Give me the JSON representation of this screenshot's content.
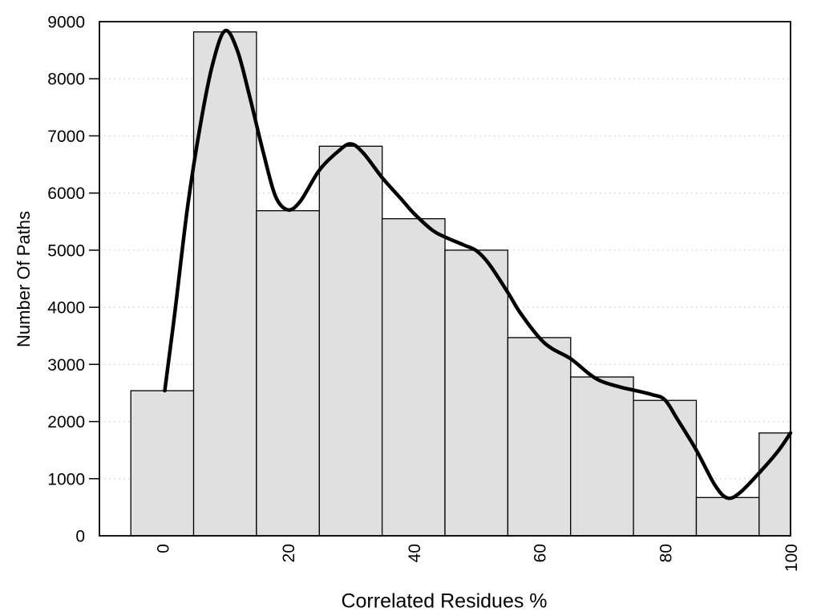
{
  "chart_data": {
    "type": "bar",
    "subtype": "histogram-with-smoothed-curve",
    "title": "",
    "xlabel": "Correlated Residues %",
    "ylabel": "Number Of Paths",
    "xlim": [
      -10,
      100
    ],
    "ylim": [
      0,
      9000
    ],
    "x_tick_labels": [
      0,
      20,
      40,
      60,
      80,
      100
    ],
    "y_tick_labels": [
      0,
      1000,
      2000,
      3000,
      4000,
      5000,
      6000,
      7000,
      8000,
      9000
    ],
    "x_tick_rotation": -90,
    "grid": {
      "horizontal_dotted_at": [
        1000,
        2000,
        3000,
        4000,
        5000,
        6000,
        7000,
        8000
      ]
    },
    "legend": "none",
    "bars": [
      {
        "x0": -5,
        "x1": 5,
        "value": 2540
      },
      {
        "x0": 5,
        "x1": 15,
        "value": 8820
      },
      {
        "x0": 15,
        "x1": 25,
        "value": 5690
      },
      {
        "x0": 25,
        "x1": 35,
        "value": 6820
      },
      {
        "x0": 35,
        "x1": 45,
        "value": 5550
      },
      {
        "x0": 45,
        "x1": 55,
        "value": 5000
      },
      {
        "x0": 55,
        "x1": 65,
        "value": 3470
      },
      {
        "x0": 65,
        "x1": 75,
        "value": 2780
      },
      {
        "x0": 75,
        "x1": 85,
        "value": 2370
      },
      {
        "x0": 85,
        "x1": 95,
        "value": 670
      },
      {
        "x0": 95,
        "x1": 100,
        "value": 1800
      }
    ],
    "curve_points": [
      [
        0.4,
        2540
      ],
      [
        2,
        3900
      ],
      [
        4,
        5730
      ],
      [
        6,
        7150
      ],
      [
        8,
        8250
      ],
      [
        10,
        8840
      ],
      [
        12,
        8480
      ],
      [
        14,
        7650
      ],
      [
        16,
        6750
      ],
      [
        18,
        5950
      ],
      [
        20,
        5705
      ],
      [
        22,
        5860
      ],
      [
        25,
        6400
      ],
      [
        28,
        6730
      ],
      [
        30,
        6860
      ],
      [
        32,
        6700
      ],
      [
        35,
        6270
      ],
      [
        38,
        5900
      ],
      [
        40,
        5650
      ],
      [
        43,
        5350
      ],
      [
        45,
        5230
      ],
      [
        48,
        5090
      ],
      [
        50,
        4990
      ],
      [
        52,
        4760
      ],
      [
        55,
        4260
      ],
      [
        57,
        3900
      ],
      [
        60,
        3470
      ],
      [
        62,
        3280
      ],
      [
        65,
        3100
      ],
      [
        68,
        2830
      ],
      [
        70,
        2700
      ],
      [
        73,
        2600
      ],
      [
        75,
        2550
      ],
      [
        78,
        2470
      ],
      [
        80,
        2380
      ],
      [
        82,
        2040
      ],
      [
        85,
        1500
      ],
      [
        88,
        880
      ],
      [
        90,
        660
      ],
      [
        92,
        760
      ],
      [
        95,
        1100
      ],
      [
        98,
        1480
      ],
      [
        100,
        1800
      ]
    ],
    "colors": {
      "bar_fill": "#e0e0e0",
      "bar_border": "#000000",
      "curve": "#000000",
      "grid": "#c4c4c4",
      "frame": "#000000",
      "background": "#ffffff",
      "text": "#000000"
    }
  }
}
